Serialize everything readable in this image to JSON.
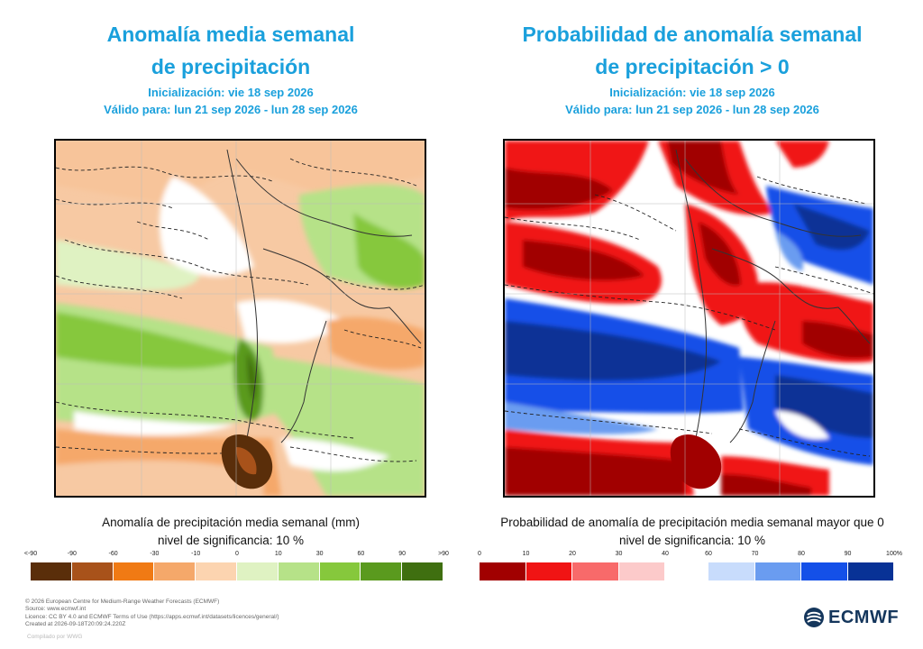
{
  "left": {
    "title_line1": "Anomalía media semanal",
    "title_line2": "de precipitación",
    "init": "Inicialización: vie 18 sep 2026",
    "valid": "Válido para: lun 21 sep 2026 - lun 28 sep 2026",
    "caption": "Anomalía de precipitación media semanal (mm)",
    "significance": "nivel de significancia: 10 %",
    "ticks": [
      "<-90",
      "-90",
      "-60",
      "-30",
      "-10",
      "0",
      "10",
      "30",
      "60",
      "90",
      ">90"
    ],
    "colors": [
      "#5a2e0a",
      "#a8521a",
      "#f07a14",
      "#f5a86a",
      "#fcd4b0",
      "#dff2c2",
      "#b6e288",
      "#86c83c",
      "#5a9a1e",
      "#3f6f10"
    ]
  },
  "right": {
    "title_line1": "Probabilidad de anomalía semanal",
    "title_line2": "de precipitación > 0",
    "init": "Inicialización: vie 18 sep 2026",
    "valid": "Válido para: lun 21 sep 2026 - lun 28 sep 2026",
    "caption": "Probabilidad de anomalía de precipitación media semanal mayor que 0",
    "significance": "nivel de significancia: 10 %",
    "ticks_low": [
      "0",
      "10",
      "20",
      "30",
      "40"
    ],
    "ticks_high": [
      "60",
      "70",
      "80",
      "90",
      "100%"
    ],
    "colors_low": [
      "#a10000",
      "#f01414",
      "#f86a6a",
      "#fccaca"
    ],
    "colors_high": [
      "#c8dcfc",
      "#6a9cf0",
      "#1450e8",
      "#083296"
    ]
  },
  "footer": {
    "line1": "© 2026 European Centre for Medium-Range Weather Forecasts (ECMWF)",
    "line2": "Source: www.ecmwf.int",
    "line3": "Licence: CC BY 4.0 and ECMWF Terms of Use (https://apps.ecmwf.int/datasets/licences/general/)",
    "line4": "Created at 2026-09-18T20:09:24.220Z",
    "watermark": "Compilado por WWG"
  },
  "logo": {
    "text": "ECMWF",
    "color": "#14365c",
    "icon": "ecmwf-swirl-icon"
  }
}
